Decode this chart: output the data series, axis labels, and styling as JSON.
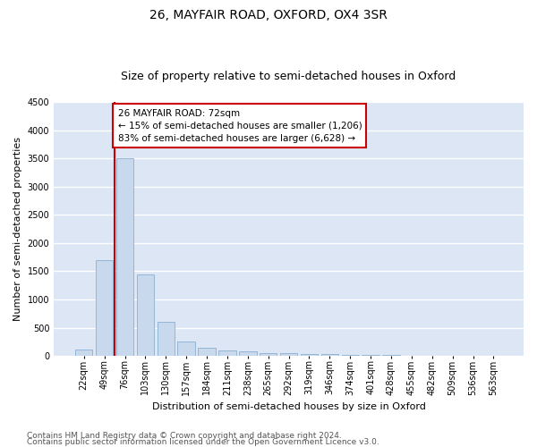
{
  "title": "26, MAYFAIR ROAD, OXFORD, OX4 3SR",
  "subtitle": "Size of property relative to semi-detached houses in Oxford",
  "xlabel": "Distribution of semi-detached houses by size in Oxford",
  "ylabel": "Number of semi-detached properties",
  "categories": [
    "22sqm",
    "49sqm",
    "76sqm",
    "103sqm",
    "130sqm",
    "157sqm",
    "184sqm",
    "211sqm",
    "238sqm",
    "265sqm",
    "292sqm",
    "319sqm",
    "346sqm",
    "374sqm",
    "401sqm",
    "428sqm",
    "455sqm",
    "482sqm",
    "509sqm",
    "536sqm",
    "563sqm"
  ],
  "values": [
    110,
    1700,
    3500,
    1450,
    600,
    250,
    150,
    100,
    80,
    55,
    45,
    40,
    30,
    20,
    15,
    10,
    8,
    6,
    5,
    4,
    3
  ],
  "bar_color": "#c8d8ed",
  "bar_edge_color": "#8ab0d0",
  "highlight_index": 2,
  "annotation_text": "26 MAYFAIR ROAD: 72sqm\n← 15% of semi-detached houses are smaller (1,206)\n83% of semi-detached houses are larger (6,628) →",
  "annotation_box_edge_color": "#cc0000",
  "red_line_color": "#cc0000",
  "ylim": [
    0,
    4500
  ],
  "yticks": [
    0,
    500,
    1000,
    1500,
    2000,
    2500,
    3000,
    3500,
    4000,
    4500
  ],
  "footer_line1": "Contains HM Land Registry data © Crown copyright and database right 2024.",
  "footer_line2": "Contains public sector information licensed under the Open Government Licence v3.0.",
  "fig_bg_color": "#ffffff",
  "plot_bg_color": "#dce6f5",
  "grid_color": "#ffffff",
  "title_fontsize": 10,
  "subtitle_fontsize": 9,
  "axis_label_fontsize": 8,
  "tick_fontsize": 7,
  "annotation_fontsize": 7.5,
  "footer_fontsize": 6.5
}
